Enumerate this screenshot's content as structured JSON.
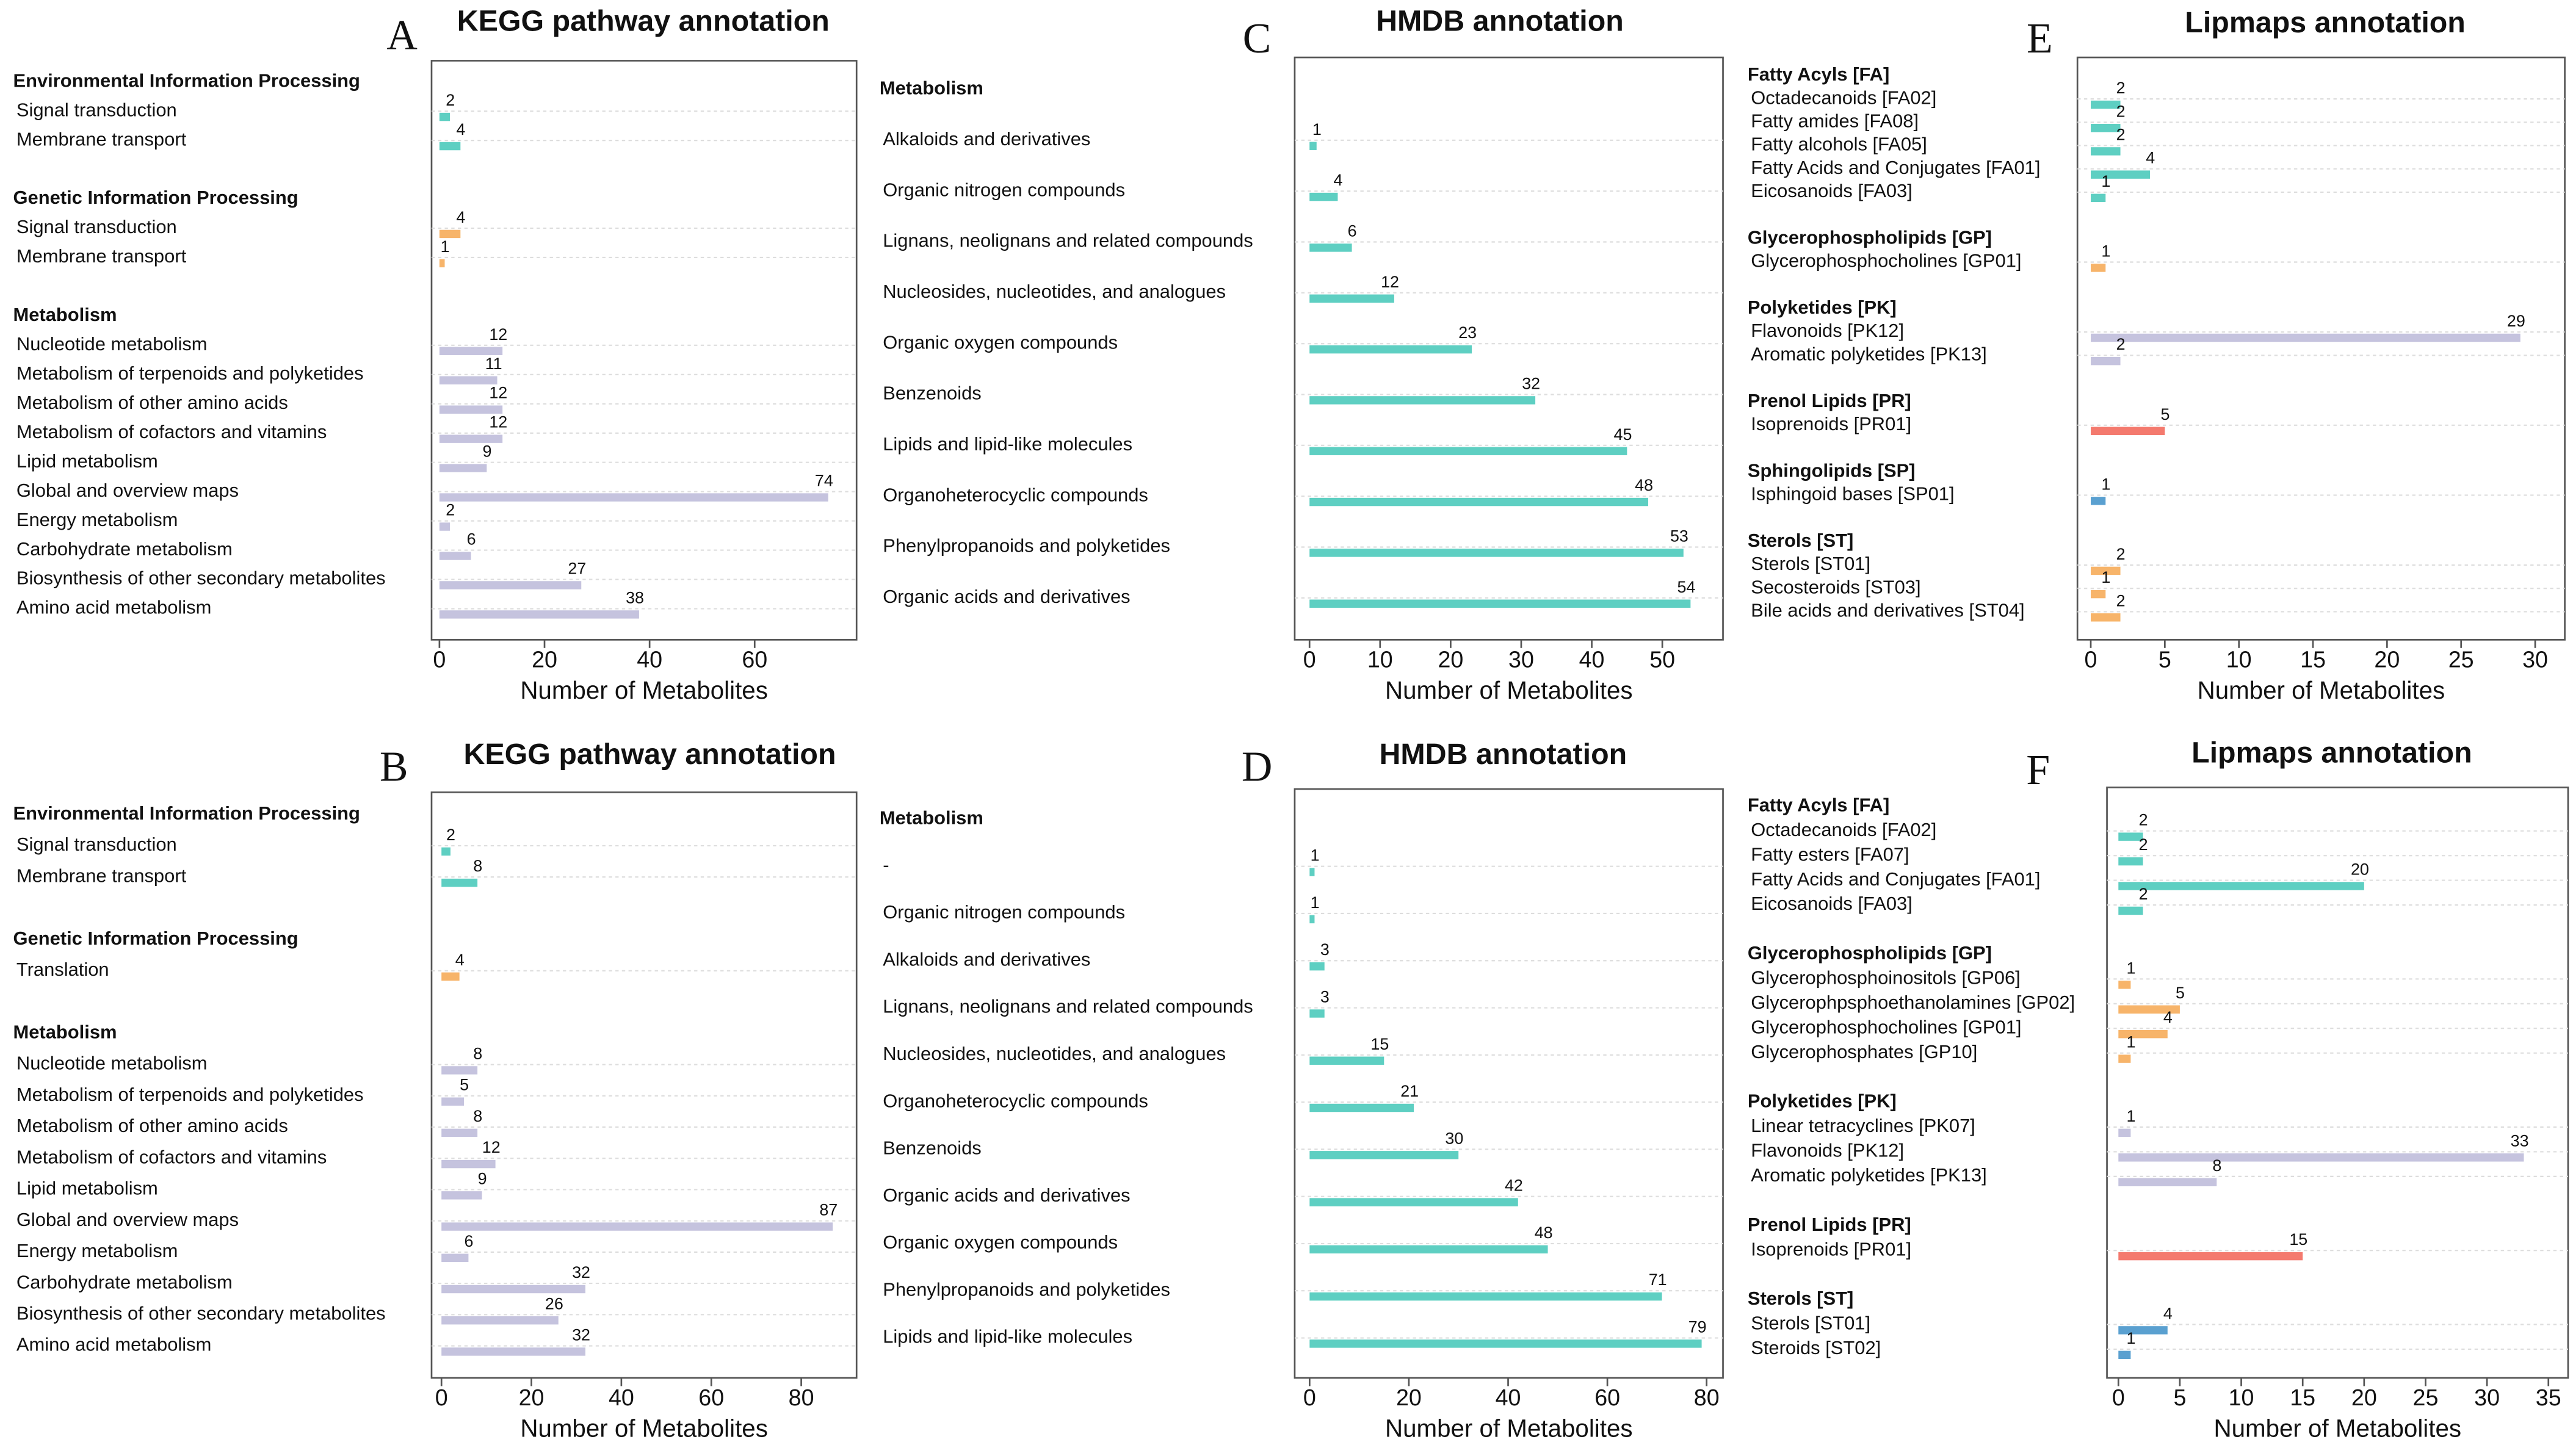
{
  "chart_data": [
    {
      "type": "bar",
      "orientation": "horizontal",
      "panel": "A",
      "title": "KEGG pathway annotation",
      "xlabel": "Number of Metabolites",
      "xlim": [
        -1.5,
        79.4
      ],
      "xticks": [
        0,
        20,
        40,
        60
      ],
      "grid": true,
      "groups": [
        {
          "name": "Environmental Information Processing",
          "color": "#5ecfc2",
          "categories": [
            "Signal transduction",
            "Membrane transport"
          ],
          "values": [
            2,
            4
          ]
        },
        {
          "name": "Genetic Information Processing",
          "color": "#f7b46a",
          "categories": [
            "Signal transduction",
            "Membrane transport"
          ],
          "values": [
            4,
            1
          ]
        },
        {
          "name": "Metabolism",
          "color": "#c5c3de",
          "categories": [
            "Nucleotide metabolism",
            "Metabolism of terpenoids and polyketides",
            "Metabolism of other amino acids",
            "Metabolism of cofactors and vitamins",
            "Lipid metabolism",
            "Global and overview maps",
            "Energy metabolism",
            "Carbohydrate metabolism",
            "Biosynthesis of other secondary metabolites",
            "Amino acid metabolism"
          ],
          "values": [
            12,
            11,
            12,
            12,
            9,
            74,
            2,
            6,
            27,
            38
          ]
        }
      ]
    },
    {
      "type": "bar",
      "orientation": "horizontal",
      "panel": "B",
      "title": "KEGG pathway annotation",
      "xlabel": "Number of Metabolites",
      "xlim": [
        -2.2,
        92.3
      ],
      "xticks": [
        0,
        20,
        40,
        60,
        80
      ],
      "grid": true,
      "groups": [
        {
          "name": "Environmental Information Processing",
          "color": "#5ecfc2",
          "categories": [
            "Signal transduction",
            "Membrane transport"
          ],
          "values": [
            2,
            8
          ]
        },
        {
          "name": "Genetic Information Processing",
          "color": "#f7b46a",
          "categories": [
            "Translation"
          ],
          "values": [
            4
          ]
        },
        {
          "name": "Metabolism",
          "color": "#c5c3de",
          "categories": [
            "Nucleotide metabolism",
            "Metabolism of terpenoids and polyketides",
            "Metabolism of other amino acids",
            "Metabolism of cofactors and vitamins",
            "Lipid metabolism",
            "Global and overview maps",
            "Energy metabolism",
            "Carbohydrate metabolism",
            "Biosynthesis of other secondary metabolites",
            "Amino acid metabolism"
          ],
          "values": [
            8,
            5,
            8,
            12,
            9,
            87,
            6,
            32,
            26,
            32
          ]
        }
      ]
    },
    {
      "type": "bar",
      "orientation": "horizontal",
      "panel": "C",
      "title": "HMDB annotation",
      "xlabel": "Number of Metabolites",
      "xlim": [
        -2.1,
        58.6
      ],
      "xticks": [
        0,
        10,
        20,
        30,
        40,
        50
      ],
      "grid": true,
      "groups": [
        {
          "name": "Metabolism",
          "color": "#5ecfc2",
          "categories": [
            "Alkaloids and derivatives",
            "Organic nitrogen compounds",
            "Lignans, neolignans and related compounds",
            "Nucleosides, nucleotides, and analogues",
            "Organic oxygen compounds",
            "Benzenoids",
            "Lipids and lipid-like molecules",
            "Organoheterocyclic compounds",
            "Phenylpropanoids and polyketides",
            "Organic acids and derivatives"
          ],
          "values": [
            1,
            4,
            6,
            12,
            23,
            32,
            45,
            48,
            53,
            54
          ]
        }
      ]
    },
    {
      "type": "bar",
      "orientation": "horizontal",
      "panel": "D",
      "title": "HMDB annotation",
      "xlabel": "Number of Metabolites",
      "xlim": [
        -3,
        83.3
      ],
      "xticks": [
        0,
        20,
        40,
        60,
        80
      ],
      "grid": true,
      "groups": [
        {
          "name": "Metabolism",
          "color": "#5ecfc2",
          "categories": [
            "-",
            "Organic nitrogen compounds",
            "Alkaloids and derivatives",
            "Lignans, neolignans and related compounds",
            "Nucleosides, nucleotides, and analogues",
            "Organoheterocyclic compounds",
            "Benzenoids",
            "Organic acids and derivatives",
            "Organic oxygen compounds",
            "Phenylpropanoids and polyketides",
            "Lipids and lipid-like molecules"
          ],
          "values": [
            1,
            1,
            3,
            3,
            15,
            21,
            30,
            42,
            48,
            71,
            79
          ]
        }
      ]
    },
    {
      "type": "bar",
      "orientation": "horizontal",
      "panel": "E",
      "title": "Lipmaps annotation",
      "xlabel": "Number of Metabolites",
      "xlim": [
        -0.9,
        32
      ],
      "xticks": [
        0,
        5,
        10,
        15,
        20,
        25,
        30
      ],
      "grid": true,
      "groups": [
        {
          "name": "Fatty Acyls [FA]",
          "color": "#5ecfc2",
          "categories": [
            "Octadecanoids [FA02]",
            "Fatty amides [FA08]",
            "Fatty alcohols [FA05]",
            "Fatty Acids and Conjugates [FA01]",
            "Eicosanoids [FA03]"
          ],
          "values": [
            2,
            2,
            2,
            4,
            1
          ]
        },
        {
          "name": "Glycerophospholipids [GP]",
          "color": "#f7b46a",
          "categories": [
            "Glycerophosphocholines [GP01]"
          ],
          "values": [
            1
          ]
        },
        {
          "name": "Polyketides [PK]",
          "color": "#c5c3de",
          "categories": [
            "Flavonoids [PK12]",
            "Aromatic polyketides [PK13]"
          ],
          "values": [
            29,
            2
          ]
        },
        {
          "name": "Prenol Lipids [PR]",
          "color": "#f47a6e",
          "categories": [
            "Isoprenoids [PR01]"
          ],
          "values": [
            5
          ]
        },
        {
          "name": "Sphingolipids [SP]",
          "color": "#5aa0d0",
          "categories": [
            "Isphingoid bases [SP01]"
          ],
          "values": [
            1
          ]
        },
        {
          "name": "Sterols [ST]",
          "color": "#f7b46a",
          "categories": [
            "Sterols [ST01]",
            "Secosteroids [ST03]",
            "Bile acids and derivatives [ST04]"
          ],
          "values": [
            2,
            1,
            2
          ]
        }
      ]
    },
    {
      "type": "bar",
      "orientation": "horizontal",
      "panel": "F",
      "title": "Lipmaps annotation",
      "xlabel": "Number of Metabolites",
      "xlim": [
        -0.93,
        36.6
      ],
      "xticks": [
        0,
        5,
        10,
        15,
        20,
        25,
        30,
        35
      ],
      "grid": true,
      "groups": [
        {
          "name": "Fatty Acyls [FA]",
          "color": "#5ecfc2",
          "categories": [
            "Octadecanoids [FA02]",
            "Fatty esters [FA07]",
            "Fatty Acids and Conjugates [FA01]",
            "Eicosanoids [FA03]"
          ],
          "values": [
            2,
            2,
            20,
            2
          ]
        },
        {
          "name": "Glycerophospholipids [GP]",
          "color": "#f7b46a",
          "categories": [
            "Glycerophosphoinositols [GP06]",
            "Glycerophpsphoethanolamines [GP02]",
            "Glycerophosphocholines [GP01]",
            "Glycerophosphates [GP10]"
          ],
          "values": [
            1,
            5,
            4,
            1
          ]
        },
        {
          "name": "Polyketides [PK]",
          "color": "#c5c3de",
          "categories": [
            "Linear tetracyclines [PK07]",
            "Flavonoids [PK12]",
            "Aromatic polyketides [PK13]"
          ],
          "values": [
            1,
            33,
            8
          ]
        },
        {
          "name": "Prenol Lipids [PR]",
          "color": "#f47a6e",
          "categories": [
            "Isoprenoids [PR01]"
          ],
          "values": [
            15
          ]
        },
        {
          "name": "Sterols [ST]",
          "color": "#5aa0d0",
          "categories": [
            "Sterols [ST01]",
            "Steroids [ST02]"
          ],
          "values": [
            4,
            1
          ]
        }
      ]
    }
  ]
}
